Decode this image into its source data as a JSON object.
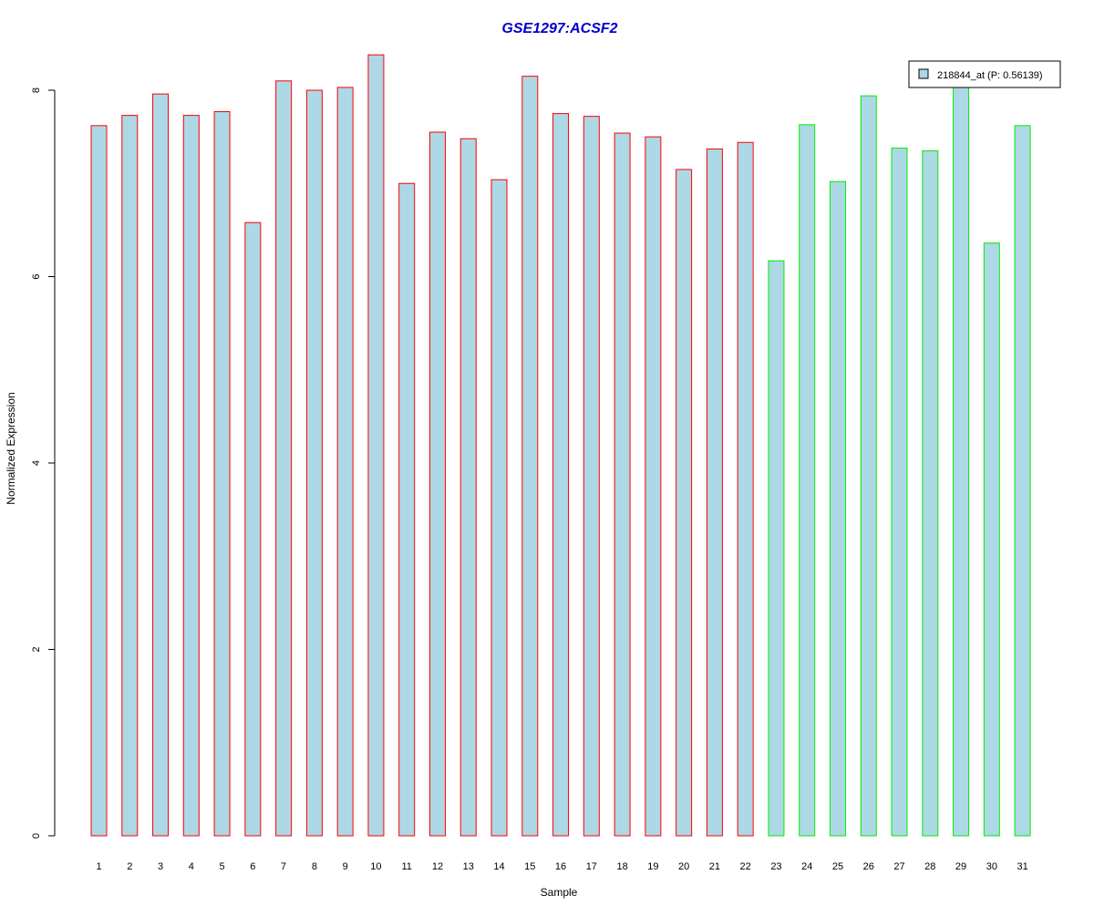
{
  "chart_data": {
    "type": "bar",
    "title": "GSE1297:ACSF2",
    "xlabel": "Sample",
    "ylabel": "Normalized Expression",
    "ylim": [
      0,
      8.4
    ],
    "yticks": [
      "0",
      "2",
      "4",
      "6",
      "8"
    ],
    "categories": [
      "1",
      "2",
      "3",
      "4",
      "5",
      "6",
      "7",
      "8",
      "9",
      "10",
      "11",
      "12",
      "13",
      "14",
      "15",
      "16",
      "17",
      "18",
      "19",
      "20",
      "21",
      "22",
      "23",
      "24",
      "25",
      "26",
      "27",
      "28",
      "29",
      "30",
      "31"
    ],
    "values": [
      7.62,
      7.73,
      7.96,
      7.73,
      7.77,
      6.58,
      8.1,
      8.0,
      8.03,
      8.38,
      7.0,
      7.55,
      7.48,
      7.04,
      8.15,
      7.75,
      7.72,
      7.54,
      7.5,
      7.15,
      7.37,
      7.44,
      6.17,
      7.63,
      7.02,
      7.94,
      7.38,
      7.35,
      8.08,
      6.36,
      7.62
    ],
    "groups": [
      "red",
      "red",
      "red",
      "red",
      "red",
      "red",
      "red",
      "red",
      "red",
      "red",
      "red",
      "red",
      "red",
      "red",
      "red",
      "red",
      "red",
      "red",
      "red",
      "red",
      "red",
      "red",
      "green",
      "green",
      "green",
      "green",
      "green",
      "green",
      "green",
      "green",
      "green"
    ],
    "grid": false,
    "legend": {
      "placement": "top-right",
      "entries": [
        {
          "label": "218844_at (P: 0.56139)"
        }
      ]
    },
    "colors": {
      "title": "#0000cc",
      "bar_fill": "#add8e6",
      "red": "#ff0000",
      "green": "#00ee00",
      "axis": "#000000"
    }
  }
}
